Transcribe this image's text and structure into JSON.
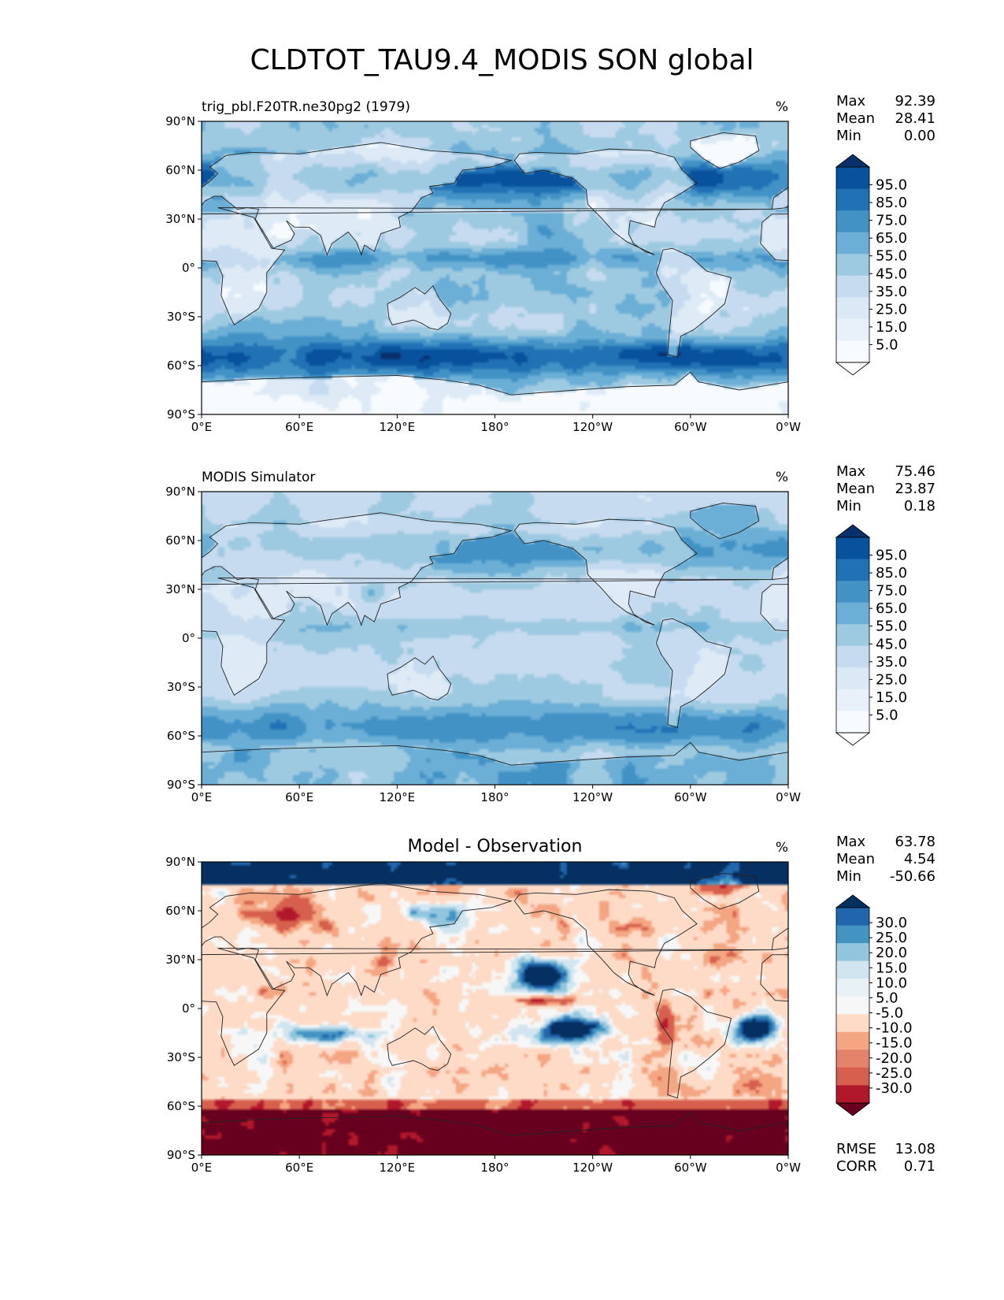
{
  "title": "CLDTOT_TAU9.4_MODIS SON global",
  "colors": {
    "blues": [
      "#f7fbff",
      "#deebf7",
      "#c6dbef",
      "#9ecae1",
      "#6baed6",
      "#4292c6",
      "#2171b5",
      "#08519c",
      "#08306b"
    ],
    "diverging": [
      "#67001f",
      "#b2182b",
      "#d6604d",
      "#f4a582",
      "#fddbc7",
      "#f7f7f7",
      "#d1e5f0",
      "#92c5de",
      "#4393c3",
      "#2166ac",
      "#053061"
    ],
    "coast": "#222222"
  },
  "chart_data": [
    {
      "type": "heatmap",
      "panel_title_left": "trig_pbl.F20TR.ne30pg2 (1979)",
      "panel_title_center": "",
      "units": "%",
      "x_ticks": [
        "0°E",
        "60°E",
        "120°E",
        "180°",
        "120°W",
        "60°W",
        "0°W"
      ],
      "y_ticks": [
        "90°N",
        "60°N",
        "30°N",
        "0°",
        "30°S",
        "60°S",
        "90°S"
      ],
      "stats": [
        {
          "label": "Max",
          "value": "92.39"
        },
        {
          "label": "Mean",
          "value": "28.41"
        },
        {
          "label": "Min",
          "value": "0.00"
        }
      ],
      "colorbar_levels": [
        "95.0",
        "85.0",
        "75.0",
        "65.0",
        "55.0",
        "45.0",
        "35.0",
        "25.0",
        "15.0",
        "5.0"
      ],
      "colormap": "blues",
      "field": "test"
    },
    {
      "type": "heatmap",
      "panel_title_left": "MODIS Simulator",
      "panel_title_center": "",
      "units": "%",
      "x_ticks": [
        "0°E",
        "60°E",
        "120°E",
        "180°",
        "120°W",
        "60°W",
        "0°W"
      ],
      "y_ticks": [
        "90°N",
        "60°N",
        "30°N",
        "0°",
        "30°S",
        "60°S",
        "90°S"
      ],
      "stats": [
        {
          "label": "Max",
          "value": "75.46"
        },
        {
          "label": "Mean",
          "value": "23.87"
        },
        {
          "label": "Min",
          "value": "0.18"
        }
      ],
      "colorbar_levels": [
        "95.0",
        "85.0",
        "75.0",
        "65.0",
        "55.0",
        "45.0",
        "35.0",
        "25.0",
        "15.0",
        "5.0"
      ],
      "colormap": "blues",
      "field": "ref"
    },
    {
      "type": "heatmap",
      "panel_title_left": "",
      "panel_title_center": "Model - Observation",
      "units": "%",
      "x_ticks": [
        "0°E",
        "60°E",
        "120°E",
        "180°",
        "120°W",
        "60°W",
        "0°W"
      ],
      "y_ticks": [
        "90°N",
        "60°N",
        "30°N",
        "0°",
        "30°S",
        "60°S",
        "90°S"
      ],
      "stats": [
        {
          "label": "Max",
          "value": "63.78"
        },
        {
          "label": "Mean",
          "value": "4.54"
        },
        {
          "label": "Min",
          "value": "-50.66"
        }
      ],
      "colorbar_levels": [
        "30.0",
        "25.0",
        "20.0",
        "15.0",
        "10.0",
        "5.0",
        "-5.0",
        "-10.0",
        "-15.0",
        "-20.0",
        "-25.0",
        "-30.0"
      ],
      "colormap": "diverging",
      "field": "diff",
      "extra_stats": [
        {
          "label": "RMSE",
          "value": "13.08"
        },
        {
          "label": "CORR",
          "value": "0.71"
        }
      ]
    }
  ]
}
